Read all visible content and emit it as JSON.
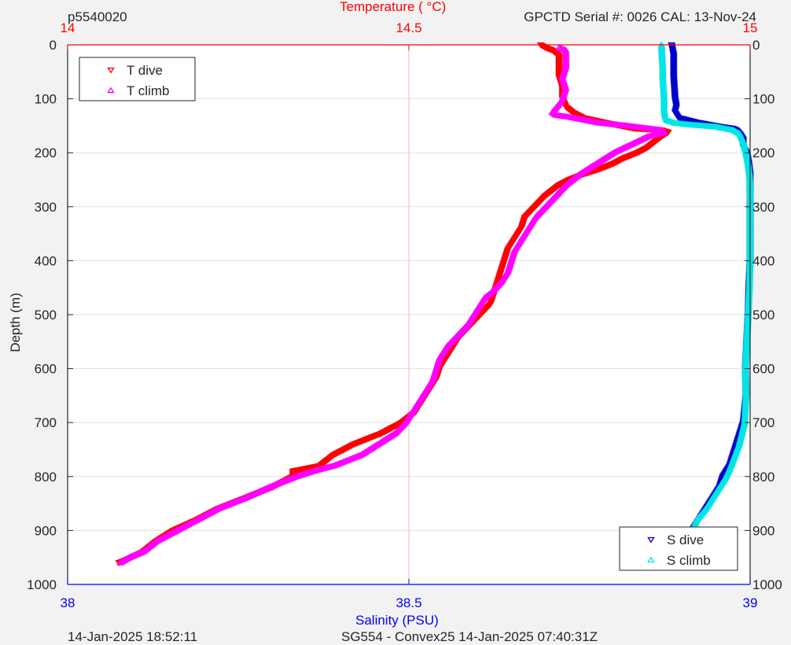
{
  "header": {
    "profile_id": "p5540020",
    "serial_text": "GPCTD Serial #: 0026 CAL: 13-Nov-24"
  },
  "footer": {
    "left_timestamp": "14-Jan-2025 18:52:11",
    "mission_text": "SG554 - Convex25 14-Jan-2025 07:40:31Z"
  },
  "chart_data": {
    "type": "scatter",
    "top_axis": {
      "label": "Temperature (    °C)",
      "ticks": [
        "14",
        "14.5",
        "15"
      ],
      "range": [
        14,
        15
      ],
      "color": "#ff0000"
    },
    "bottom_axis": {
      "label": "Salinity (PSU)",
      "ticks": [
        "38",
        "38.5",
        "39"
      ],
      "range": [
        38,
        39
      ],
      "color": "#0000ff"
    },
    "y_axis": {
      "label": "Depth (m)",
      "ticks": [
        "0",
        "100",
        "200",
        "300",
        "400",
        "500",
        "600",
        "700",
        "800",
        "900",
        "1000"
      ],
      "range": [
        0,
        1000
      ],
      "reversed": true
    },
    "grid": true,
    "legend_top_left": [
      {
        "name": "T dive",
        "color": "#ff0000",
        "marker": "triangle-down"
      },
      {
        "name": "T climb",
        "color": "#ff00ff",
        "marker": "triangle-up"
      }
    ],
    "legend_bottom_right": [
      {
        "name": "S dive",
        "color": "#0000cc",
        "marker": "triangle-down"
      },
      {
        "name": "S climb",
        "color": "#00e5e5",
        "marker": "triangle-up"
      }
    ],
    "series": [
      {
        "name": "T dive",
        "axis": "temperature",
        "color": "#ff0000",
        "marker": "down",
        "points": [
          [
            0,
            14.693
          ],
          [
            5,
            14.7
          ],
          [
            10,
            14.71
          ],
          [
            20,
            14.72
          ],
          [
            40,
            14.72
          ],
          [
            60,
            14.72
          ],
          [
            80,
            14.725
          ],
          [
            100,
            14.725
          ],
          [
            115,
            14.73
          ],
          [
            125,
            14.74
          ],
          [
            135,
            14.755
          ],
          [
            142,
            14.78
          ],
          [
            150,
            14.81
          ],
          [
            155,
            14.83
          ],
          [
            158,
            14.87
          ],
          [
            162,
            14.88
          ],
          [
            170,
            14.87
          ],
          [
            180,
            14.86
          ],
          [
            190,
            14.85
          ],
          [
            200,
            14.835
          ],
          [
            210,
            14.815
          ],
          [
            220,
            14.8
          ],
          [
            230,
            14.78
          ],
          [
            240,
            14.755
          ],
          [
            250,
            14.735
          ],
          [
            260,
            14.72
          ],
          [
            270,
            14.71
          ],
          [
            280,
            14.7
          ],
          [
            300,
            14.685
          ],
          [
            320,
            14.67
          ],
          [
            340,
            14.665
          ],
          [
            360,
            14.655
          ],
          [
            380,
            14.645
          ],
          [
            400,
            14.64
          ],
          [
            420,
            14.635
          ],
          [
            440,
            14.63
          ],
          [
            460,
            14.625
          ],
          [
            480,
            14.62
          ],
          [
            500,
            14.605
          ],
          [
            520,
            14.59
          ],
          [
            540,
            14.575
          ],
          [
            560,
            14.565
          ],
          [
            580,
            14.555
          ],
          [
            600,
            14.545
          ],
          [
            620,
            14.54
          ],
          [
            640,
            14.53
          ],
          [
            660,
            14.52
          ],
          [
            680,
            14.51
          ],
          [
            700,
            14.49
          ],
          [
            720,
            14.46
          ],
          [
            740,
            14.42
          ],
          [
            760,
            14.39
          ],
          [
            780,
            14.37
          ],
          [
            790,
            14.33
          ],
          [
            800,
            14.33
          ],
          [
            820,
            14.3
          ],
          [
            840,
            14.26
          ],
          [
            860,
            14.22
          ],
          [
            880,
            14.19
          ],
          [
            900,
            14.155
          ],
          [
            920,
            14.13
          ],
          [
            940,
            14.11
          ],
          [
            955,
            14.085
          ],
          [
            960,
            14.075
          ]
        ]
      },
      {
        "name": "T climb",
        "axis": "temperature",
        "color": "#ff00ff",
        "marker": "up",
        "points": [
          [
            960,
            14.077
          ],
          [
            950,
            14.09
          ],
          [
            940,
            14.11
          ],
          [
            920,
            14.13
          ],
          [
            900,
            14.16
          ],
          [
            880,
            14.19
          ],
          [
            860,
            14.22
          ],
          [
            840,
            14.26
          ],
          [
            820,
            14.295
          ],
          [
            800,
            14.335
          ],
          [
            790,
            14.36
          ],
          [
            780,
            14.39
          ],
          [
            760,
            14.43
          ],
          [
            740,
            14.455
          ],
          [
            720,
            14.48
          ],
          [
            700,
            14.495
          ],
          [
            680,
            14.505
          ],
          [
            660,
            14.515
          ],
          [
            640,
            14.525
          ],
          [
            620,
            14.535
          ],
          [
            600,
            14.54
          ],
          [
            580,
            14.545
          ],
          [
            560,
            14.555
          ],
          [
            540,
            14.57
          ],
          [
            520,
            14.585
          ],
          [
            500,
            14.595
          ],
          [
            480,
            14.605
          ],
          [
            470,
            14.61
          ],
          [
            460,
            14.62
          ],
          [
            440,
            14.635
          ],
          [
            420,
            14.645
          ],
          [
            400,
            14.65
          ],
          [
            380,
            14.655
          ],
          [
            360,
            14.665
          ],
          [
            340,
            14.675
          ],
          [
            320,
            14.685
          ],
          [
            300,
            14.7
          ],
          [
            280,
            14.715
          ],
          [
            260,
            14.73
          ],
          [
            240,
            14.75
          ],
          [
            220,
            14.775
          ],
          [
            200,
            14.8
          ],
          [
            185,
            14.825
          ],
          [
            170,
            14.85
          ],
          [
            162,
            14.875
          ],
          [
            158,
            14.87
          ],
          [
            150,
            14.82
          ],
          [
            145,
            14.78
          ],
          [
            140,
            14.76
          ],
          [
            135,
            14.74
          ],
          [
            130,
            14.715
          ],
          [
            125,
            14.71
          ],
          [
            110,
            14.72
          ],
          [
            100,
            14.725
          ],
          [
            80,
            14.73
          ],
          [
            60,
            14.725
          ],
          [
            40,
            14.73
          ],
          [
            20,
            14.73
          ],
          [
            10,
            14.73
          ],
          [
            5,
            14.72
          ]
        ]
      },
      {
        "name": "S dive",
        "axis": "salinity",
        "color": "#0000cc",
        "marker": "down",
        "points": [
          [
            0,
            38.885
          ],
          [
            20,
            38.888
          ],
          [
            40,
            38.888
          ],
          [
            60,
            38.888
          ],
          [
            80,
            38.889
          ],
          [
            100,
            38.89
          ],
          [
            115,
            38.892
          ],
          [
            125,
            38.89
          ],
          [
            135,
            38.895
          ],
          [
            143,
            38.92
          ],
          [
            150,
            38.95
          ],
          [
            155,
            38.975
          ],
          [
            158,
            38.98
          ],
          [
            165,
            38.985
          ],
          [
            175,
            38.99
          ],
          [
            190,
            38.99
          ],
          [
            200,
            38.995
          ],
          [
            220,
            38.998
          ],
          [
            240,
            39.0
          ],
          [
            260,
            39.0
          ],
          [
            280,
            39.0
          ],
          [
            300,
            39.0
          ],
          [
            350,
            39.0
          ],
          [
            400,
            39.0
          ],
          [
            450,
            38.998
          ],
          [
            500,
            38.997
          ],
          [
            550,
            38.995
          ],
          [
            600,
            38.993
          ],
          [
            650,
            38.994
          ],
          [
            700,
            38.99
          ],
          [
            720,
            38.985
          ],
          [
            740,
            38.98
          ],
          [
            760,
            38.975
          ],
          [
            780,
            38.97
          ],
          [
            800,
            38.96
          ],
          [
            820,
            38.955
          ],
          [
            840,
            38.945
          ],
          [
            860,
            38.935
          ],
          [
            880,
            38.925
          ],
          [
            900,
            38.915
          ],
          [
            920,
            38.91
          ],
          [
            940,
            38.905
          ],
          [
            950,
            38.9
          ],
          [
            960,
            38.9
          ]
        ]
      },
      {
        "name": "S climb",
        "axis": "salinity",
        "color": "#00e5e5",
        "marker": "up",
        "points": [
          [
            965,
            38.9
          ],
          [
            955,
            38.902
          ],
          [
            940,
            38.905
          ],
          [
            920,
            38.91
          ],
          [
            900,
            38.915
          ],
          [
            880,
            38.922
          ],
          [
            860,
            38.935
          ],
          [
            840,
            38.945
          ],
          [
            820,
            38.955
          ],
          [
            800,
            38.965
          ],
          [
            780,
            38.972
          ],
          [
            760,
            38.978
          ],
          [
            740,
            38.984
          ],
          [
            720,
            38.988
          ],
          [
            700,
            38.992
          ],
          [
            650,
            38.994
          ],
          [
            600,
            38.993
          ],
          [
            550,
            38.995
          ],
          [
            500,
            38.997
          ],
          [
            450,
            38.999
          ],
          [
            400,
            39.0
          ],
          [
            350,
            39.0
          ],
          [
            300,
            39.0
          ],
          [
            260,
            39.0
          ],
          [
            240,
            38.999
          ],
          [
            220,
            38.997
          ],
          [
            200,
            38.994
          ],
          [
            180,
            38.99
          ],
          [
            165,
            38.985
          ],
          [
            158,
            38.975
          ],
          [
            152,
            38.95
          ],
          [
            148,
            38.91
          ],
          [
            145,
            38.89
          ],
          [
            140,
            38.878
          ],
          [
            130,
            38.875
          ],
          [
            120,
            38.874
          ],
          [
            100,
            38.874
          ],
          [
            80,
            38.873
          ],
          [
            60,
            38.872
          ],
          [
            40,
            38.872
          ],
          [
            20,
            38.871
          ],
          [
            0,
            38.87
          ]
        ]
      }
    ]
  }
}
